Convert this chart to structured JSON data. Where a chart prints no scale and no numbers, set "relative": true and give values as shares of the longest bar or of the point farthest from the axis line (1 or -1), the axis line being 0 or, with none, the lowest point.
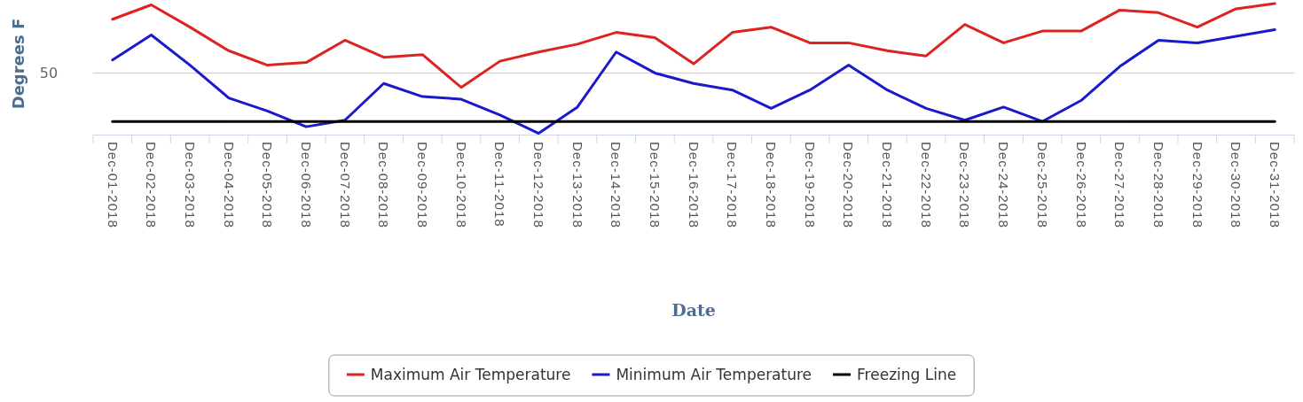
{
  "chart_data": {
    "type": "line",
    "relative": true,
    "xlabel": "Date",
    "ylabel": "Degrees F",
    "categories": [
      "Dec-01-2018",
      "Dec-02-2018",
      "Dec-03-2018",
      "Dec-04-2018",
      "Dec-05-2018",
      "Dec-06-2018",
      "Dec-07-2018",
      "Dec-08-2018",
      "Dec-09-2018",
      "Dec-10-2018",
      "Dec-11-2018",
      "Dec-12-2018",
      "Dec-13-2018",
      "Dec-14-2018",
      "Dec-15-2018",
      "Dec-16-2018",
      "Dec-17-2018",
      "Dec-18-2018",
      "Dec-19-2018",
      "Dec-20-2018",
      "Dec-21-2018",
      "Dec-22-2018",
      "Dec-23-2018",
      "Dec-24-2018",
      "Dec-25-2018",
      "Dec-26-2018",
      "Dec-27-2018",
      "Dec-28-2018",
      "Dec-29-2018",
      "Dec-30-2018",
      "Dec-31-2018"
    ],
    "series": [
      {
        "name": "Maximum Air Temperature",
        "color": "#dd2222",
        "values": [
          0.88,
          0.99,
          0.82,
          0.64,
          0.53,
          0.55,
          0.72,
          0.59,
          0.61,
          0.36,
          0.56,
          0.63,
          0.69,
          0.78,
          0.74,
          0.54,
          0.78,
          0.82,
          0.7,
          0.7,
          0.64,
          0.6,
          0.84,
          0.7,
          0.79,
          0.79,
          0.95,
          0.93,
          0.82,
          0.96,
          1
        ]
      },
      {
        "name": "Minimum Air Temperature",
        "color": "#1a1acc",
        "values": [
          0.57,
          0.76,
          0.53,
          0.28,
          0.18,
          0.06,
          0.11,
          0.39,
          0.29,
          0.27,
          0.15,
          0.01,
          0.21,
          0.63,
          0.47,
          0.39,
          0.34,
          0.2,
          0.34,
          0.53,
          0.34,
          0.2,
          0.11,
          0.21,
          0.1,
          0.26,
          0.52,
          0.72,
          0.7,
          0.75,
          0.8
        ]
      },
      {
        "name": "Freezing Line",
        "color": "#000000",
        "values": [
          0.1,
          0.1,
          0.1,
          0.1,
          0.1,
          0.1,
          0.1,
          0.1,
          0.1,
          0.1,
          0.1,
          0.1,
          0.1,
          0.1,
          0.1,
          0.1,
          0.1,
          0.1,
          0.1,
          0.1,
          0.1,
          0.1,
          0.1,
          0.1,
          0.1,
          0.1,
          0.1,
          0.1,
          0.1,
          0.1,
          0.1
        ]
      }
    ],
    "ref_lines": [
      {
        "axis": "y",
        "value": 0.47,
        "color": "#cccccc"
      }
    ],
    "annotations": [
      "50"
    ],
    "legend": "bottom",
    "marker": "none",
    "line_style": "solid"
  }
}
